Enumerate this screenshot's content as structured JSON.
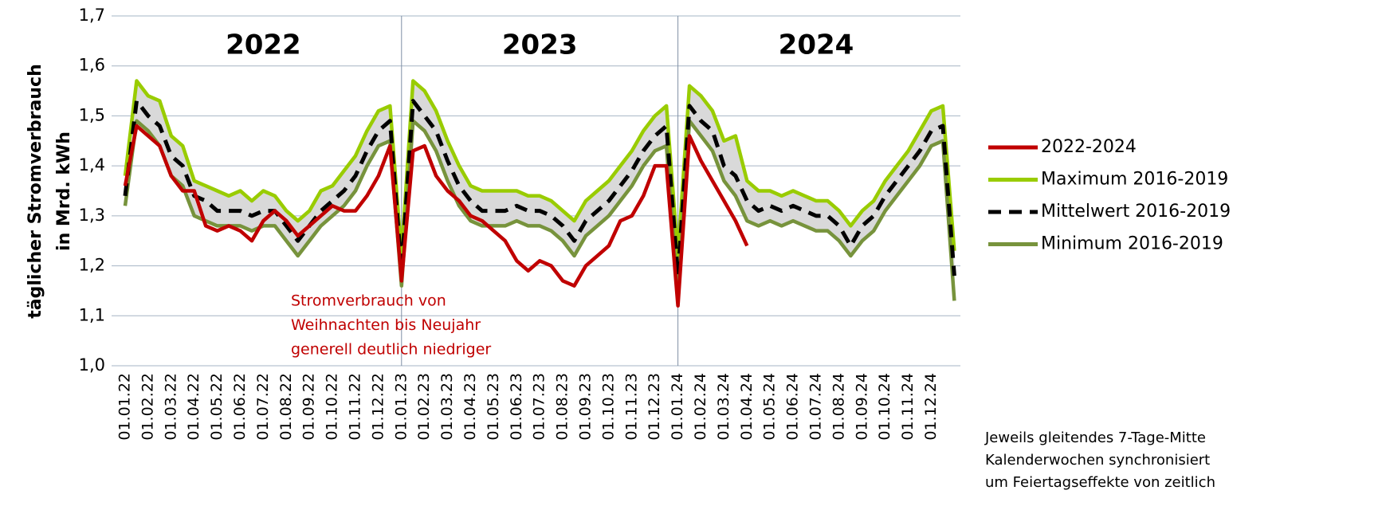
{
  "chart_data": {
    "type": "line",
    "y_label": [
      "täglicher Stromverbrauch",
      "in Mrd. kWh"
    ],
    "categories": [
      "01.01.22",
      null,
      "01.02.22",
      null,
      "01.03.22",
      null,
      "01.04.22",
      null,
      "01.05.22",
      null,
      "01.06.22",
      null,
      "01.07.22",
      null,
      "01.08.22",
      null,
      "01.09.22",
      null,
      "01.10.22",
      null,
      "01.11.22",
      null,
      "01.12.22",
      null,
      "01.01.23",
      null,
      "01.02.23",
      null,
      "01.03.23",
      null,
      "01.04.23",
      null,
      "01.05.23",
      null,
      "01.06.23",
      null,
      "01.07.23",
      null,
      "01.08.23",
      null,
      "01.09.23",
      null,
      "01.10.23",
      null,
      "01.11.23",
      null,
      "01.12.23",
      null,
      "01.01.24",
      null,
      "01.02.24",
      null,
      "01.03.24",
      null,
      "01.04.24",
      null,
      "01.05.24",
      null,
      "01.06.24",
      null,
      "01.07.24",
      null,
      "01.08.24",
      null,
      "01.09.24",
      null,
      "01.10.24",
      null,
      "01.11.24",
      null,
      "01.12.24",
      null,
      null
    ],
    "series": [
      {
        "name": "2022-2024",
        "color": "#c00000",
        "style": "solid",
        "values": [
          1.36,
          1.48,
          1.46,
          1.44,
          1.38,
          1.35,
          1.35,
          1.28,
          1.27,
          1.28,
          1.27,
          1.25,
          1.29,
          1.31,
          1.29,
          1.26,
          1.28,
          1.3,
          1.32,
          1.31,
          1.31,
          1.34,
          1.38,
          1.44,
          1.17,
          1.43,
          1.44,
          1.38,
          1.35,
          1.33,
          1.3,
          1.29,
          1.27,
          1.25,
          1.21,
          1.19,
          1.21,
          1.2,
          1.17,
          1.16,
          1.2,
          1.22,
          1.24,
          1.29,
          1.3,
          1.34,
          1.4,
          1.4,
          1.12,
          1.46,
          1.41,
          1.37,
          1.33,
          1.29,
          1.24,
          null,
          null,
          null,
          null,
          null,
          null,
          null,
          null,
          null,
          null,
          null,
          null,
          null,
          null,
          null,
          null,
          null,
          null
        ]
      },
      {
        "name": "Maximum 2016-2019",
        "color": "#99cc00",
        "style": "solid",
        "values": [
          1.38,
          1.57,
          1.54,
          1.53,
          1.46,
          1.44,
          1.37,
          1.36,
          1.35,
          1.34,
          1.35,
          1.33,
          1.35,
          1.34,
          1.31,
          1.29,
          1.31,
          1.35,
          1.36,
          1.39,
          1.42,
          1.47,
          1.51,
          1.52,
          1.22,
          1.57,
          1.55,
          1.51,
          1.45,
          1.4,
          1.36,
          1.35,
          1.35,
          1.35,
          1.35,
          1.34,
          1.34,
          1.33,
          1.31,
          1.29,
          1.33,
          1.35,
          1.37,
          1.4,
          1.43,
          1.47,
          1.5,
          1.52,
          1.22,
          1.56,
          1.54,
          1.51,
          1.45,
          1.46,
          1.37,
          1.35,
          1.35,
          1.34,
          1.35,
          1.34,
          1.33,
          1.33,
          1.31,
          1.28,
          1.31,
          1.33,
          1.37,
          1.4,
          1.43,
          1.47,
          1.51,
          1.52,
          1.23
        ]
      },
      {
        "name": "Mittelwert 2016-2019",
        "color": "#000000",
        "style": "dashed",
        "values": [
          1.34,
          1.53,
          1.5,
          1.48,
          1.42,
          1.4,
          1.34,
          1.33,
          1.31,
          1.31,
          1.31,
          1.3,
          1.31,
          1.31,
          1.28,
          1.25,
          1.28,
          1.31,
          1.33,
          1.35,
          1.38,
          1.43,
          1.47,
          1.49,
          1.19,
          1.53,
          1.5,
          1.47,
          1.41,
          1.36,
          1.33,
          1.31,
          1.31,
          1.31,
          1.32,
          1.31,
          1.31,
          1.3,
          1.28,
          1.25,
          1.29,
          1.31,
          1.33,
          1.36,
          1.39,
          1.43,
          1.46,
          1.48,
          1.18,
          1.52,
          1.49,
          1.47,
          1.4,
          1.38,
          1.33,
          1.31,
          1.32,
          1.31,
          1.32,
          1.31,
          1.3,
          1.3,
          1.28,
          1.24,
          1.28,
          1.3,
          1.34,
          1.37,
          1.4,
          1.43,
          1.47,
          1.48,
          1.18
        ]
      },
      {
        "name": "Minimum 2016-2019",
        "color": "#77933c",
        "style": "solid",
        "values": [
          1.32,
          1.49,
          1.47,
          1.44,
          1.38,
          1.36,
          1.3,
          1.29,
          1.28,
          1.28,
          1.28,
          1.27,
          1.28,
          1.28,
          1.25,
          1.22,
          1.25,
          1.28,
          1.3,
          1.32,
          1.35,
          1.4,
          1.44,
          1.45,
          1.16,
          1.49,
          1.47,
          1.43,
          1.37,
          1.32,
          1.29,
          1.28,
          1.28,
          1.28,
          1.29,
          1.28,
          1.28,
          1.27,
          1.25,
          1.22,
          1.26,
          1.28,
          1.3,
          1.33,
          1.36,
          1.4,
          1.43,
          1.44,
          1.14,
          1.49,
          1.46,
          1.43,
          1.37,
          1.34,
          1.29,
          1.28,
          1.29,
          1.28,
          1.29,
          1.28,
          1.27,
          1.27,
          1.25,
          1.22,
          1.25,
          1.27,
          1.31,
          1.34,
          1.37,
          1.4,
          1.44,
          1.45,
          1.13
        ]
      }
    ],
    "ylim": [
      1.0,
      1.7
    ],
    "yticks": [
      {
        "value": 1.0,
        "label": "1,0"
      },
      {
        "value": 1.1,
        "label": "1,1"
      },
      {
        "value": 1.2,
        "label": "1,2"
      },
      {
        "value": 1.3,
        "label": "1,3"
      },
      {
        "value": 1.4,
        "label": "1,4"
      },
      {
        "value": 1.5,
        "label": "1,5"
      },
      {
        "value": 1.6,
        "label": "1,6"
      },
      {
        "value": 1.7,
        "label": "1,7"
      }
    ],
    "grid": true,
    "legend": "right",
    "year_labels": [
      "2022",
      "2023",
      "2024"
    ],
    "annotation": [
      "Stromverbrauch von",
      "Weihnachten bis Neujahr",
      "generell deutlich niedriger"
    ],
    "footnote": [
      "Jeweils gleitendes 7-Tage-Mitte",
      "Kalenderwochen synchronisiert",
      "um Feiertagseffekte von zeitlich"
    ]
  }
}
